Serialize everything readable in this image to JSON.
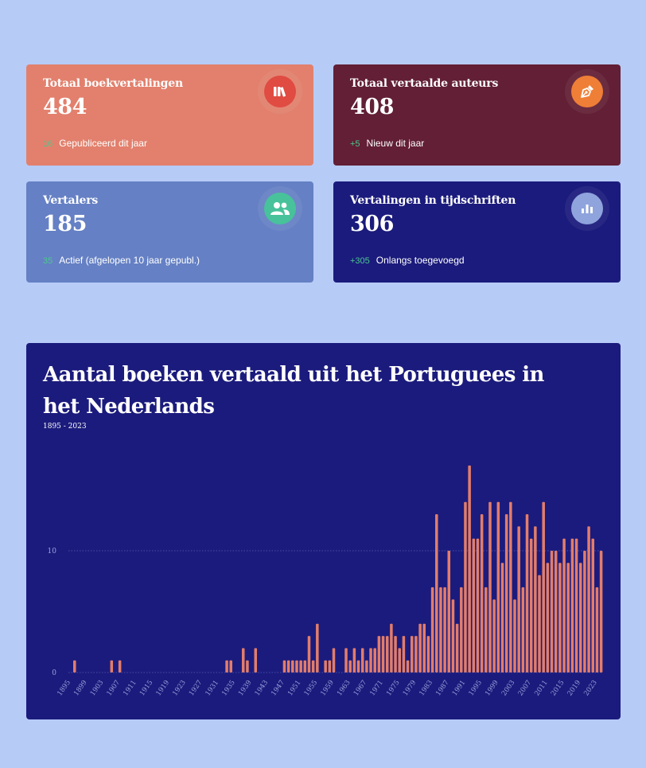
{
  "colors": {
    "background": "#b7cbf7",
    "bar": "#e27d6b",
    "delta": "#4cc88e"
  },
  "cards": [
    {
      "title": "Totaal boekvertalingen",
      "value": "484",
      "delta": "16",
      "subtext": "Gepubliceerd dit jaar",
      "bg": "#e2806d",
      "icon": "books-icon",
      "icon_bg": "#e04b42"
    },
    {
      "title": "Totaal vertaalde auteurs",
      "value": "408",
      "delta": "+5",
      "subtext": "Nieuw dit jaar",
      "bg": "#621f35",
      "icon": "pen-nib-icon",
      "icon_bg": "#ef7f36"
    },
    {
      "title": "Vertalers",
      "value": "185",
      "delta": "35",
      "subtext": "Actief (afgelopen 10 jaar gepubl.)",
      "bg": "#6580c4",
      "icon": "users-icon",
      "icon_bg": "#48c29a"
    },
    {
      "title": "Vertalingen in tijdschriften",
      "value": "306",
      "delta": "+305",
      "subtext": "Onlangs toegevoegd",
      "bg": "#1b1b7d",
      "icon": "bar-chart-icon",
      "icon_bg": "#8fa4dd"
    }
  ],
  "chart_data": {
    "type": "bar",
    "title": "Aantal boeken vertaald uit het Portuguees in het Nederlands",
    "subtitle": "1895 - 2023",
    "x_start": 1895,
    "x_end": 2023,
    "yticks": [
      0,
      10
    ],
    "ylim": [
      0,
      17.5
    ],
    "xticks": [
      1895,
      1899,
      1903,
      1907,
      1911,
      1915,
      1919,
      1923,
      1927,
      1931,
      1935,
      1939,
      1943,
      1947,
      1951,
      1955,
      1959,
      1963,
      1967,
      1971,
      1975,
      1979,
      1983,
      1987,
      1991,
      1995,
      1999,
      2003,
      2007,
      2011,
      2015,
      2019,
      2023
    ],
    "values": {
      "1896": 1,
      "1905": 1,
      "1907": 1,
      "1933": 1,
      "1934": 1,
      "1937": 2,
      "1938": 1,
      "1940": 2,
      "1947": 1,
      "1948": 1,
      "1949": 1,
      "1950": 1,
      "1951": 1,
      "1952": 1,
      "1953": 3,
      "1954": 1,
      "1955": 4,
      "1957": 1,
      "1958": 1,
      "1959": 2,
      "1962": 2,
      "1963": 1,
      "1964": 2,
      "1965": 1,
      "1966": 2,
      "1967": 1,
      "1968": 2,
      "1969": 2,
      "1970": 3,
      "1971": 3,
      "1972": 3,
      "1973": 4,
      "1974": 3,
      "1975": 2,
      "1976": 3,
      "1977": 1,
      "1978": 3,
      "1979": 3,
      "1980": 4,
      "1981": 4,
      "1982": 3,
      "1983": 7,
      "1984": 13,
      "1985": 7,
      "1986": 7,
      "1987": 10,
      "1988": 6,
      "1989": 4,
      "1990": 7,
      "1991": 14,
      "1992": 17,
      "1993": 11,
      "1994": 11,
      "1995": 13,
      "1996": 7,
      "1997": 14,
      "1998": 6,
      "1999": 14,
      "2000": 9,
      "2001": 13,
      "2002": 14,
      "2003": 6,
      "2004": 12,
      "2005": 7,
      "2006": 13,
      "2007": 11,
      "2008": 12,
      "2009": 8,
      "2010": 14,
      "2011": 9,
      "2012": 10,
      "2013": 10,
      "2014": 9,
      "2015": 11,
      "2016": 9,
      "2017": 11,
      "2018": 11,
      "2019": 9,
      "2020": 10,
      "2021": 12,
      "2022": 11,
      "2023": 7,
      "2024": 10
    }
  }
}
